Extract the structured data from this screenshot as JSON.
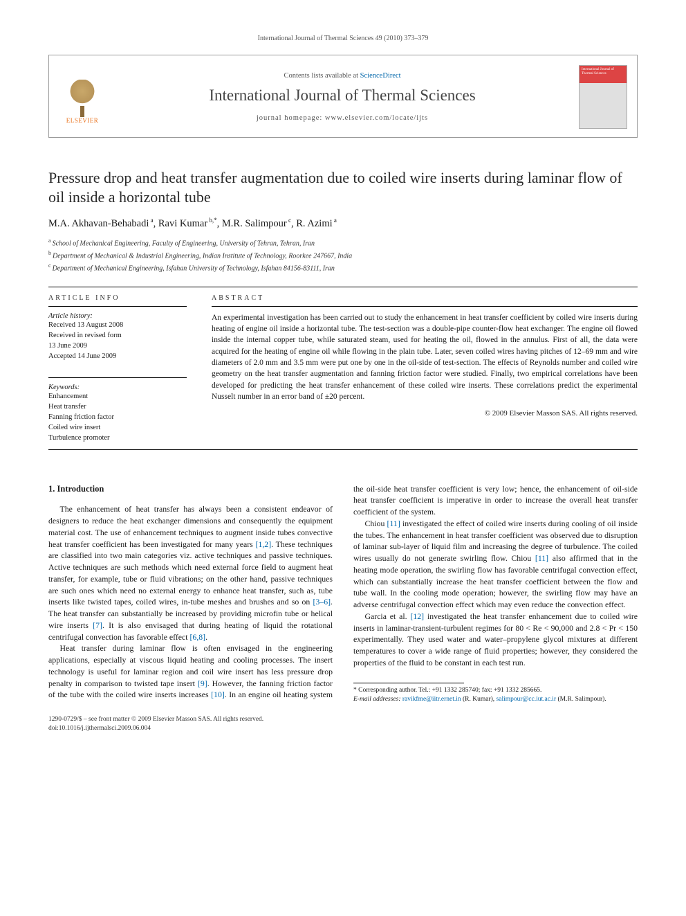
{
  "running_head": "International Journal of Thermal Sciences 49 (2010) 373–379",
  "masthead": {
    "publisher": "ELSEVIER",
    "contents_prefix": "Contents lists available at ",
    "contents_link": "ScienceDirect",
    "journal_name": "International Journal of Thermal Sciences",
    "homepage_prefix": "journal homepage: ",
    "homepage_url": "www.elsevier.com/locate/ijts",
    "cover_text": "International Journal of Thermal Sciences"
  },
  "title": "Pressure drop and heat transfer augmentation due to coiled wire inserts during laminar flow of oil inside a horizontal tube",
  "authors_html": "M.A. Akhavan-Behabadi|a|, Ravi Kumar|b,*|, M.R. Salimpour|c|, R. Azimi|a|",
  "authors": [
    {
      "name": "M.A. Akhavan-Behabadi",
      "marks": "a"
    },
    {
      "name": "Ravi Kumar",
      "marks": "b,*"
    },
    {
      "name": "M.R. Salimpour",
      "marks": "c"
    },
    {
      "name": "R. Azimi",
      "marks": "a"
    }
  ],
  "affiliations": [
    {
      "mark": "a",
      "text": "School of Mechanical Engineering, Faculty of Engineering, University of Tehran, Tehran, Iran"
    },
    {
      "mark": "b",
      "text": "Department of Mechanical & Industrial Engineering, Indian Institute of Technology, Roorkee 247667, India"
    },
    {
      "mark": "c",
      "text": "Department of Mechanical Engineering, Isfahan University of Technology, Isfahan 84156-83111, Iran"
    }
  ],
  "info": {
    "heading": "ARTICLE INFO",
    "history_label": "Article history:",
    "history": [
      "Received 13 August 2008",
      "Received in revised form",
      "13 June 2009",
      "Accepted 14 June 2009"
    ],
    "keywords_label": "Keywords:",
    "keywords": [
      "Enhancement",
      "Heat transfer",
      "Fanning friction factor",
      "Coiled wire insert",
      "Turbulence promoter"
    ]
  },
  "abstract": {
    "heading": "ABSTRACT",
    "text": "An experimental investigation has been carried out to study the enhancement in heat transfer coefficient by coiled wire inserts during heating of engine oil inside a horizontal tube. The test-section was a double-pipe counter-flow heat exchanger. The engine oil flowed inside the internal copper tube, while saturated steam, used for heating the oil, flowed in the annulus. First of all, the data were acquired for the heating of engine oil while flowing in the plain tube. Later, seven coiled wires having pitches of 12–69 mm and wire diameters of 2.0 mm and 3.5 mm were put one by one in the oil-side of test-section. The effects of Reynolds number and coiled wire geometry on the heat transfer augmentation and fanning friction factor were studied. Finally, two empirical correlations have been developed for predicting the heat transfer enhancement of these coiled wire inserts. These correlations predict the experimental Nusselt number in an error band of ±20 percent.",
    "copyright": "© 2009 Elsevier Masson SAS. All rights reserved."
  },
  "section1": {
    "heading": "1.  Introduction",
    "p1_a": "The enhancement of heat transfer has always been a consistent endeavor of designers to reduce the heat exchanger dimensions and consequently the equipment material cost. The use of enhancement techniques to augment inside tubes convective heat transfer coefficient has been investigated for many years ",
    "ref_12": "[1,2]",
    "p1_b": ". These techniques are classified into two main categories viz. active techniques and passive techniques. Active techniques are such methods which need external force field to augment heat transfer, for example, tube or fluid vibrations; on the other hand, passive techniques are such ones which need no external energy to enhance heat transfer, such as, tube inserts like twisted tapes, coiled wires, in-tube meshes and brushes and so on ",
    "ref_36": "[3–6]",
    "p1_c": ". The heat transfer can substantially be increased by providing microfin tube or helical wire inserts ",
    "ref_7": "[7]",
    "p1_d": ". It is also envisaged that during heating of liquid the rotational centrifugal convection has favorable effect ",
    "ref_68": "[6,8]",
    "p1_e": ".",
    "p2_a": "Heat transfer during laminar flow is often envisaged in the engineering applications, especially at viscous liquid heating and cooling processes. The insert technology is useful for laminar region and coil wire insert has less pressure drop penalty in comparison to twisted tape insert ",
    "ref_9": "[9]",
    "p2_b": ". However, the fanning friction factor of the tube with the coiled wire inserts increases ",
    "ref_10": "[10]",
    "p2_c": ". In an engine oil heating system the oil-side heat transfer coefficient is very low; hence, the enhancement of oil-side heat transfer coefficient is imperative in order to increase the overall heat transfer coefficient of the system.",
    "p3_a": "Chiou ",
    "ref_11a": "[11]",
    "p3_b": " investigated the effect of coiled wire inserts during cooling of oil inside the tubes. The enhancement in heat transfer coefficient was observed due to disruption of laminar sub-layer of liquid film and increasing the degree of turbulence. The coiled wires usually do not generate swirling flow. Chiou ",
    "ref_11b": "[11]",
    "p3_c": " also affirmed that in the heating mode operation, the swirling flow has favorable centrifugal convection effect, which can substantially increase the heat transfer coefficient between the flow and tube wall. In the cooling mode operation; however, the swirling flow may have an adverse centrifugal convection effect which may even reduce the convection effect.",
    "p4_a": "Garcia et al. ",
    "ref_12b": "[12]",
    "p4_b": " investigated the heat transfer enhancement due to coiled wire inserts in laminar-transient-turbulent regimes for 80 < Re < 90,000 and 2.8 < Pr < 150 experimentally. They used water and water–propylene glycol mixtures at different temperatures to cover a wide range of fluid properties; however, they considered the properties of the fluid to be constant in each test run."
  },
  "footnote": {
    "corr": "* Corresponding author. Tel.: +91 1332 285740; fax: +91 1332 285665.",
    "emails_label": "E-mail addresses:",
    "email1": "ravikfme@iitr.ernet.in",
    "name1": " (R. Kumar), ",
    "email2": "salimpour@cc.iut.ac.ir",
    "name2": " (M.R. Salimpour)."
  },
  "bottom": {
    "line1": "1290-0729/$ – see front matter © 2009 Elsevier Masson SAS. All rights reserved.",
    "line2": "doi:10.1016/j.ijthermalsci.2009.06.004"
  },
  "colors": {
    "link": "#0066aa",
    "publisher": "#e9711c",
    "text": "#1a1a1a",
    "rule": "#000000"
  }
}
